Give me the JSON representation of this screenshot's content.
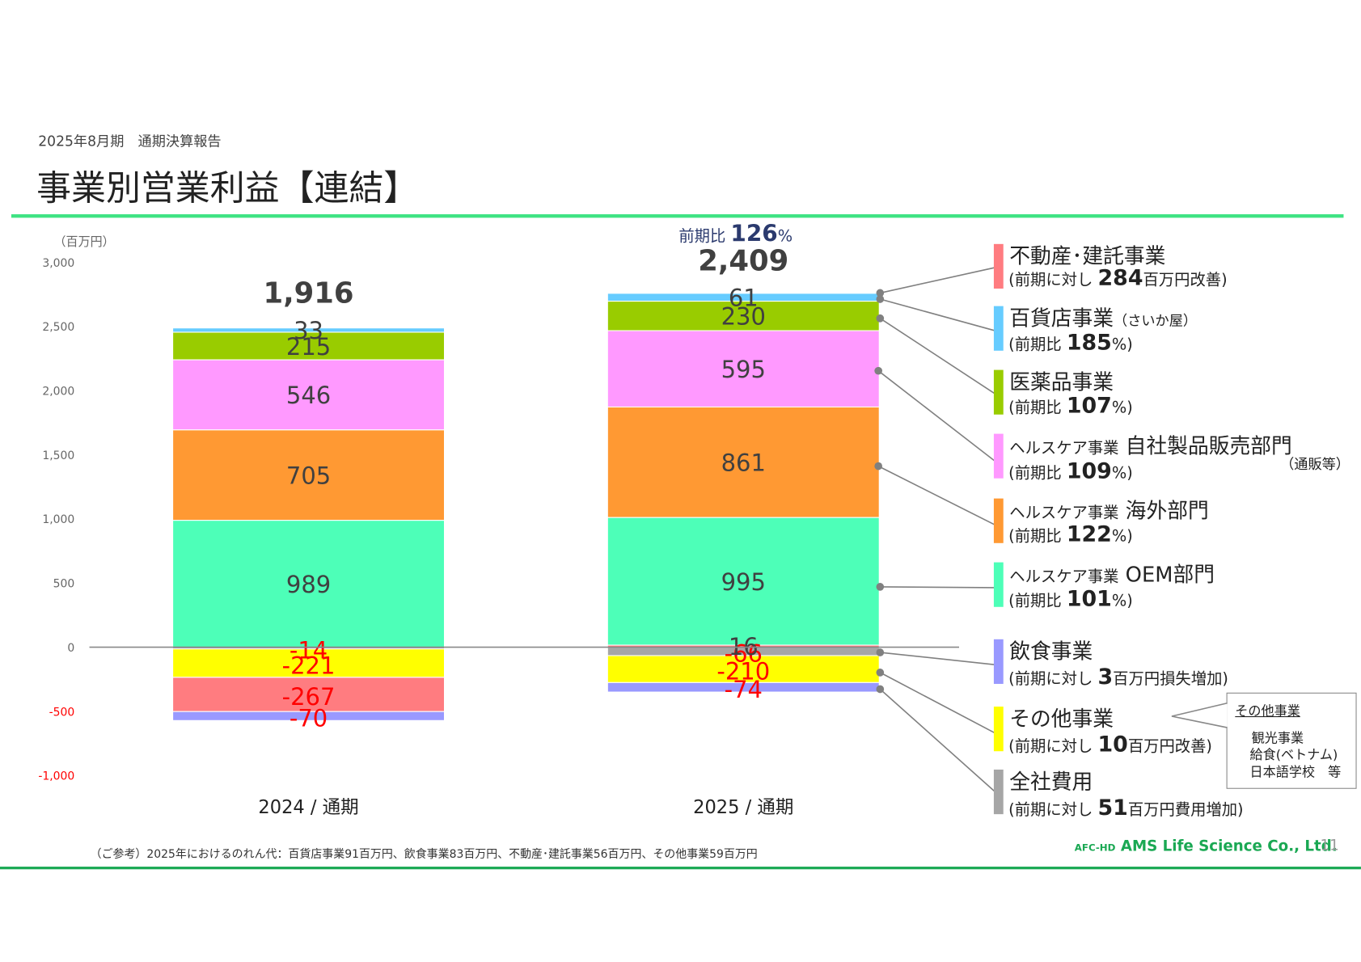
{
  "header": {
    "subtitle": "2025年8月期　通期決算報告",
    "title": "事業別営業利益【連結】"
  },
  "colors": {
    "accent_rule": "#3fe383",
    "bottom_rule": "#1aa853",
    "negative_label": "#ff0000"
  },
  "chart_data": {
    "type": "bar",
    "stacked": true,
    "unit_label": "（百万円）",
    "ylim": [
      -1000,
      3000
    ],
    "yticks": [
      "3,000",
      "2,500",
      "2,000",
      "1,500",
      "1,000",
      "500",
      "0",
      "-500",
      "-1,000"
    ],
    "categories": [
      "2024 / 通期",
      "2025 / 通期"
    ],
    "totals": [
      "1,916",
      "2,409"
    ],
    "series": [
      {
        "name": "全社費用",
        "values": [
          -14,
          -66
        ],
        "color": "#a6a6a6",
        "labels": [
          "-14",
          "-66"
        ]
      },
      {
        "name": "その他事業",
        "values": [
          -221,
          -210
        ],
        "color": "#ffff00",
        "labels": [
          "-221",
          "-210"
        ]
      },
      {
        "name": "不動産・建託事業",
        "values": [
          -267,
          16
        ],
        "color": "#ff7c80",
        "labels": [
          "-267",
          "16"
        ]
      },
      {
        "name": "飲食事業",
        "values": [
          -70,
          -74
        ],
        "color": "#9999ff",
        "labels": [
          "-70",
          "-74"
        ]
      },
      {
        "name": "ヘルスケア事業 OEM部門",
        "values": [
          989,
          995
        ],
        "color": "#4dffb8",
        "labels": [
          "989",
          "995"
        ]
      },
      {
        "name": "ヘルスケア事業 海外部門",
        "values": [
          705,
          861
        ],
        "color": "#ff9933",
        "labels": [
          "705",
          "861"
        ]
      },
      {
        "name": "ヘルスケア事業 自社製品販売部門",
        "values": [
          546,
          595
        ],
        "color": "#ff99ff",
        "labels": [
          "546",
          "595"
        ]
      },
      {
        "name": "医薬品事業",
        "values": [
          215,
          230
        ],
        "color": "#99cc00",
        "labels": [
          "215",
          "230"
        ]
      },
      {
        "name": "百貨店事業",
        "values": [
          33,
          61
        ],
        "color": "#66ccff",
        "labels": [
          "33",
          "61"
        ]
      }
    ],
    "ratio": {
      "prefix": "前期比",
      "value": "126",
      "suffix": "%"
    }
  },
  "legend": [
    {
      "color": "#ff7c80",
      "pre": "",
      "title": "不動産･建託事業",
      "suffix": "",
      "sub_pre": "(前期に対し",
      "sub_num": "284",
      "sub_post": "百万円改善)"
    },
    {
      "color": "#66ccff",
      "pre": "",
      "title": "百貨店事業",
      "suffix": "（さいか屋）",
      "sub_pre": "(前期比",
      "sub_num": "185",
      "sub_post": "%)"
    },
    {
      "color": "#99cc00",
      "pre": "",
      "title": "医薬品事業",
      "suffix": "",
      "sub_pre": "(前期比",
      "sub_num": "107",
      "sub_post": "%)"
    },
    {
      "color": "#ff99ff",
      "pre": "ヘルスケア事業",
      "title": "自社製品販売部門",
      "suffix": "",
      "sub_pre": "(前期比",
      "sub_num": "109",
      "sub_post": "%)",
      "extra": "（通販等）"
    },
    {
      "color": "#ff9933",
      "pre": "ヘルスケア事業",
      "title": "海外部門",
      "suffix": "",
      "sub_pre": "(前期比",
      "sub_num": "122",
      "sub_post": "%)"
    },
    {
      "color": "#4dffb8",
      "pre": "ヘルスケア事業",
      "title": "OEM部門",
      "suffix": "",
      "sub_pre": "(前期比",
      "sub_num": "101",
      "sub_post": "%)"
    },
    {
      "color": "#9999ff",
      "pre": "",
      "title": "飲食事業",
      "suffix": "",
      "sub_pre": "(前期に対し",
      "sub_num": "3",
      "sub_post": "百万円損失増加)"
    },
    {
      "color": "#ffff00",
      "pre": "",
      "title": "その他事業",
      "suffix": "",
      "sub_pre": "(前期に対し",
      "sub_num": "10",
      "sub_post": "百万円改善)"
    },
    {
      "color": "#a6a6a6",
      "pre": "",
      "title": "全社費用",
      "suffix": "",
      "sub_pre": "(前期に対し",
      "sub_num": "51",
      "sub_post": "百万円費用増加)"
    }
  ],
  "other_box": {
    "heading": "その他事業",
    "lines": [
      "観光事業",
      "給食(ベトナム)",
      "日本語学校　等"
    ]
  },
  "footer": {
    "note": "（ご参考）2025年におけるのれん代：百貨店事業91百万円、飲食事業83百万円、不動産･建託事業56百万円、その他事業59百万円",
    "logo_small": "AFC-HD",
    "logo_main": "AMS Life Science Co., Ltd.",
    "page": "11"
  }
}
